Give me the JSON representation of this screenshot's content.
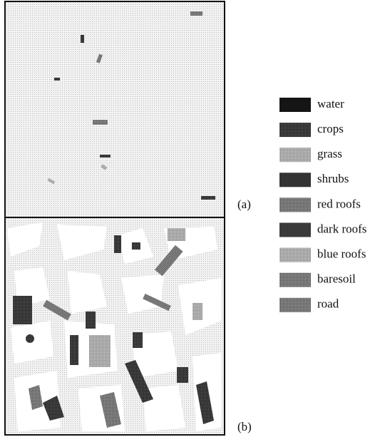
{
  "legend": [
    "water",
    "crops",
    "grass",
    "shrubs",
    "red roofs",
    "dark roofs",
    "blue roofs",
    "baresoil",
    "road"
  ],
  "panels": [
    "(a)",
    "(b)"
  ]
}
